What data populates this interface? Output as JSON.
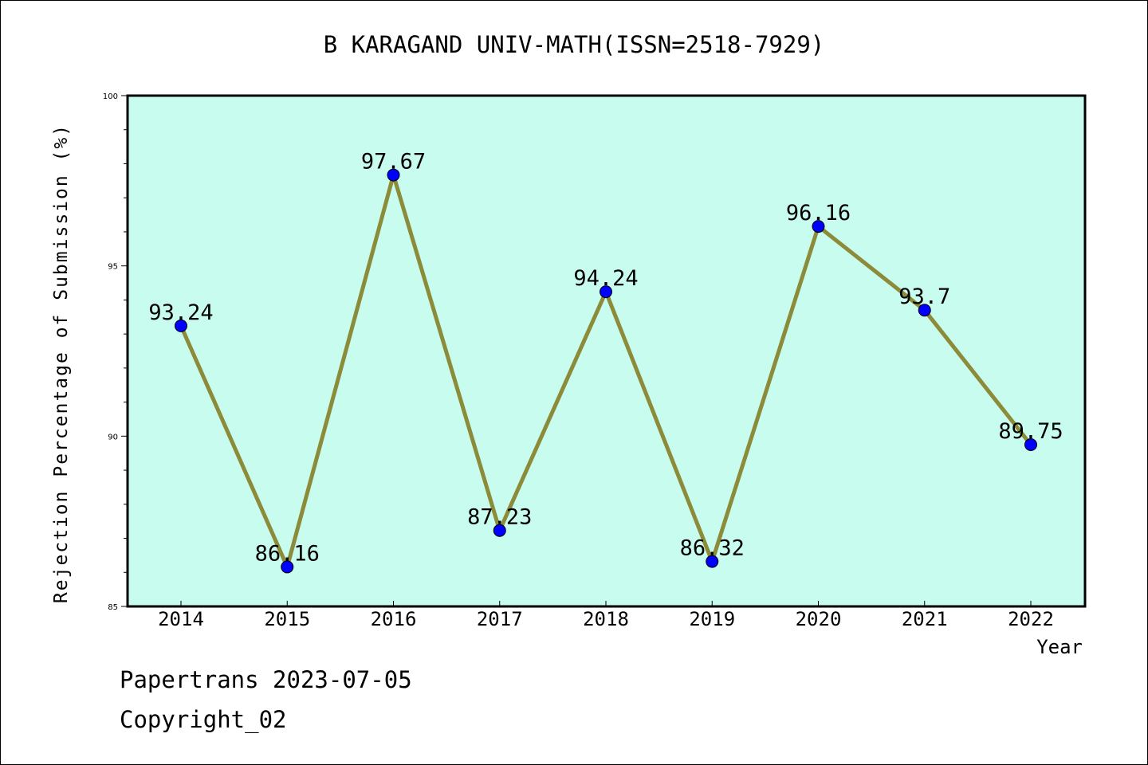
{
  "chart_data": {
    "type": "line",
    "title": "B KARAGAND UNIV-MATH(ISSN=2518-7929)",
    "xlabel": "Year",
    "ylabel": "Rejection Percentage of Submission (%)",
    "x": [
      "2014",
      "2015",
      "2016",
      "2017",
      "2018",
      "2019",
      "2020",
      "2021",
      "2022"
    ],
    "values": [
      93.24,
      86.16,
      97.67,
      87.23,
      94.24,
      86.32,
      96.16,
      93.7,
      89.75
    ],
    "data_labels": [
      "93.24",
      "86.16",
      "97.67",
      "87.23",
      "94.24",
      "86.32",
      "96.16",
      "93.7",
      "89.75"
    ],
    "yticks": [
      "85",
      "90",
      "95",
      "100"
    ],
    "ylim": [
      85,
      100
    ],
    "grid": false,
    "colors": {
      "plot_background": "#c8fcee",
      "line": "#8b8b3a",
      "marker": "#0000ff"
    }
  },
  "footer": {
    "line1": "Papertrans 2023-07-05",
    "line2": "Copyright_02"
  }
}
